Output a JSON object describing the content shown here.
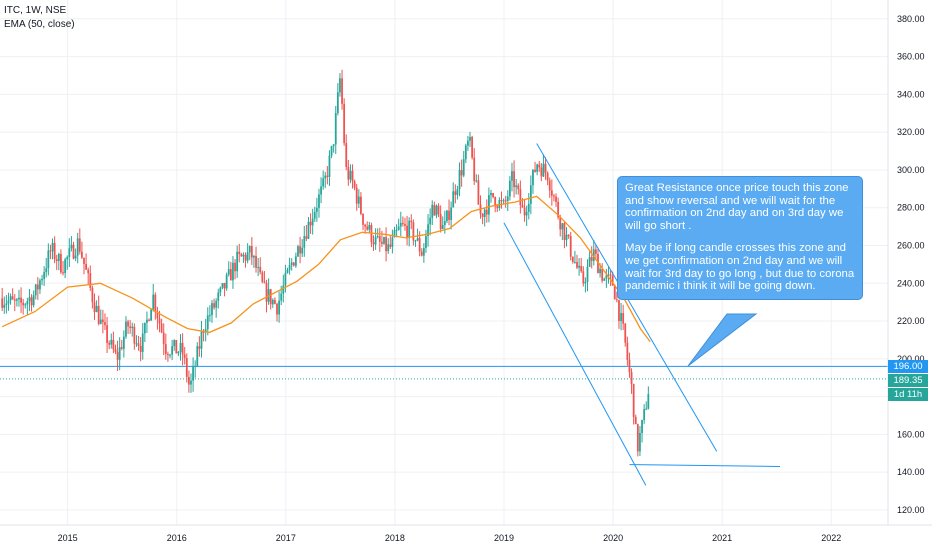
{
  "header": {
    "symbol_line": "ITC, 1W, NSE",
    "indicator_line": "EMA (50, close)"
  },
  "annotation": {
    "paragraph_1": "Great Resistance once price touch this zone and show reversal and we will wait for the confirmation on 2nd day and on 3rd day we will go short .",
    "paragraph_2": "May be if long candle crosses this zone and we get confirmation on 2nd day and we will wait for 3rd day to go long , but due to corona pandemic i think it will be going down."
  },
  "price_tags": {
    "resistance": "196.00",
    "last_price": "189.35",
    "countdown": "1d 11h"
  },
  "colors": {
    "up": "#26a69a",
    "down": "#ef5350",
    "ema": "#f7931a",
    "drawing": "#2196f3",
    "callout": "#5aabf2",
    "countdown_tag": "#26a69a"
  },
  "chart_data": {
    "type": "candlestick",
    "symbol": "ITC",
    "interval": "1W",
    "exchange": "NSE",
    "x_ticks": [
      "2015",
      "2016",
      "2017",
      "2018",
      "2019",
      "2020",
      "2021",
      "2022"
    ],
    "y_ticks": [
      "120.00",
      "140.00",
      "160.00",
      "180.00",
      "200.00",
      "220.00",
      "240.00",
      "260.00",
      "280.00",
      "300.00",
      "320.00",
      "340.00",
      "360.00",
      "380.00"
    ],
    "ylim": [
      112,
      390
    ],
    "xlim": [
      2014.38,
      2022.52
    ],
    "grid": true,
    "price_path": [
      [
        2014.4,
        232
      ],
      [
        2014.55,
        228
      ],
      [
        2014.7,
        234
      ],
      [
        2014.85,
        258
      ],
      [
        2014.95,
        249
      ],
      [
        2015.1,
        262
      ],
      [
        2015.22,
        234
      ],
      [
        2015.32,
        216
      ],
      [
        2015.45,
        200
      ],
      [
        2015.55,
        218
      ],
      [
        2015.68,
        207
      ],
      [
        2015.78,
        234
      ],
      [
        2015.9,
        206
      ],
      [
        2016.05,
        204
      ],
      [
        2016.12,
        184
      ],
      [
        2016.25,
        218
      ],
      [
        2016.42,
        236
      ],
      [
        2016.55,
        252
      ],
      [
        2016.68,
        256
      ],
      [
        2016.8,
        236
      ],
      [
        2016.92,
        228
      ],
      [
        2017.05,
        250
      ],
      [
        2017.2,
        270
      ],
      [
        2017.35,
        292
      ],
      [
        2017.43,
        312
      ],
      [
        2017.5,
        350
      ],
      [
        2017.55,
        300
      ],
      [
        2017.62,
        292
      ],
      [
        2017.72,
        272
      ],
      [
        2017.82,
        262
      ],
      [
        2017.95,
        258
      ],
      [
        2018.05,
        270
      ],
      [
        2018.15,
        268
      ],
      [
        2018.25,
        256
      ],
      [
        2018.35,
        282
      ],
      [
        2018.45,
        268
      ],
      [
        2018.55,
        290
      ],
      [
        2018.62,
        302
      ],
      [
        2018.68,
        316
      ],
      [
        2018.78,
        276
      ],
      [
        2018.9,
        286
      ],
      [
        2019.0,
        280
      ],
      [
        2019.08,
        296
      ],
      [
        2019.18,
        276
      ],
      [
        2019.3,
        304
      ],
      [
        2019.4,
        298
      ],
      [
        2019.5,
        276
      ],
      [
        2019.62,
        256
      ],
      [
        2019.72,
        240
      ],
      [
        2019.82,
        256
      ],
      [
        2019.92,
        242
      ],
      [
        2020.0,
        240
      ],
      [
        2020.1,
        212
      ],
      [
        2020.18,
        180
      ],
      [
        2020.22,
        152
      ],
      [
        2020.28,
        168
      ],
      [
        2020.33,
        186
      ],
      [
        2020.34,
        189.35
      ]
    ],
    "ema_50": [
      [
        2014.4,
        217
      ],
      [
        2014.7,
        225
      ],
      [
        2015.0,
        238
      ],
      [
        2015.3,
        240
      ],
      [
        2015.6,
        232
      ],
      [
        2015.9,
        222
      ],
      [
        2016.1,
        216
      ],
      [
        2016.3,
        214
      ],
      [
        2016.5,
        219
      ],
      [
        2016.7,
        229
      ],
      [
        2016.9,
        235
      ],
      [
        2017.1,
        241
      ],
      [
        2017.3,
        250
      ],
      [
        2017.5,
        263
      ],
      [
        2017.7,
        267
      ],
      [
        2017.9,
        266
      ],
      [
        2018.1,
        264
      ],
      [
        2018.3,
        266
      ],
      [
        2018.5,
        269
      ],
      [
        2018.7,
        278
      ],
      [
        2018.9,
        281
      ],
      [
        2019.1,
        283
      ],
      [
        2019.3,
        286
      ],
      [
        2019.5,
        276
      ],
      [
        2019.7,
        264
      ],
      [
        2019.9,
        248
      ],
      [
        2020.1,
        232
      ],
      [
        2020.25,
        216
      ],
      [
        2020.34,
        209
      ]
    ],
    "horizontal_levels": [
      {
        "price": 196.0,
        "style": "solid"
      },
      {
        "price": 189.35,
        "style": "dotted"
      }
    ],
    "trend_lines": [
      {
        "from": [
          2019.0,
          272
        ],
        "to": [
          2020.3,
          133
        ]
      },
      {
        "from": [
          2019.3,
          314
        ],
        "to": [
          2020.95,
          151
        ]
      },
      {
        "from": [
          2020.15,
          144
        ],
        "to": [
          2021.53,
          143
        ]
      }
    ]
  }
}
